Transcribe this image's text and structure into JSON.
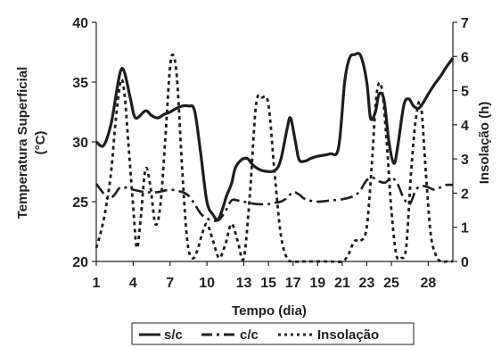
{
  "chart_data": {
    "type": "line",
    "xlabel": "Tempo (dia)",
    "ylabel_left": [
      "Temperatura Superficial",
      "(°C)"
    ],
    "ylabel_right": "Insolação (h)",
    "x_ticks": [
      "1",
      "4",
      "7",
      "10",
      "13",
      "15",
      "17",
      "19",
      "21",
      "23",
      "25",
      "28"
    ],
    "x_tick_values": [
      1,
      4,
      7,
      10,
      13,
      15,
      17,
      19,
      21,
      23,
      25,
      28
    ],
    "xlim": [
      1,
      30
    ],
    "ylim_left": [
      20,
      40
    ],
    "y_ticks_left": [
      "20",
      "25",
      "30",
      "35",
      "40"
    ],
    "ylim_right": [
      0,
      7
    ],
    "y_ticks_right": [
      "0",
      "1",
      "2",
      "3",
      "4",
      "5",
      "6",
      "7"
    ],
    "grid": false,
    "legend_position": "bottom",
    "series": [
      {
        "name": "s/c",
        "axis": "left",
        "style": "solid",
        "x": [
          1,
          1.6,
          2.2,
          2.7,
          3.0,
          3.3,
          3.8,
          4.2,
          5.0,
          5.5,
          6.0,
          6.5,
          7.0,
          7.5,
          8.0,
          8.5,
          9.0,
          9.5,
          10.0,
          10.5,
          10.9,
          11.3,
          11.6,
          12.0,
          12.3,
          12.8,
          13.3,
          13.8,
          14.5,
          15.5,
          16.0,
          16.5,
          16.8,
          17.2,
          17.5,
          18.0,
          18.4,
          19.0,
          20.0,
          20.7,
          21.2,
          21.6,
          22.0,
          22.5,
          23.0,
          23.3,
          23.7,
          24.0,
          24.4,
          24.8,
          25.2,
          25.5,
          26.0,
          26.4,
          26.8,
          27.2,
          27.6,
          28.0,
          28.5,
          29.0,
          29.5,
          30.0
        ],
        "values": [
          30.0,
          29.7,
          31.5,
          34.5,
          36.0,
          35.8,
          33.5,
          32.0,
          32.6,
          32.2,
          32.0,
          32.3,
          32.5,
          32.8,
          33.0,
          33.0,
          32.6,
          29.0,
          25.0,
          23.9,
          23.5,
          24.5,
          25.5,
          26.5,
          27.8,
          28.5,
          28.6,
          28.0,
          27.6,
          27.6,
          28.5,
          31.0,
          32.0,
          30.0,
          28.5,
          28.4,
          28.6,
          28.8,
          29.0,
          29.5,
          35.0,
          37.0,
          37.3,
          37.2,
          35.0,
          32.0,
          32.5,
          34.0,
          33.5,
          30.0,
          28.2,
          29.5,
          33.0,
          33.6,
          33.0,
          32.8,
          33.3,
          34.0,
          34.8,
          35.5,
          36.3,
          37.0
        ]
      },
      {
        "name": "c/c",
        "axis": "left",
        "style": "dashdot",
        "x": [
          1,
          1.5,
          2.0,
          2.5,
          3.0,
          4.0,
          5.0,
          6.0,
          7.0,
          8.0,
          8.5,
          9.0,
          9.5,
          10.0,
          10.5,
          11.0,
          11.5,
          12.0,
          12.5,
          13.0,
          14.0,
          15.0,
          15.5,
          16.0,
          16.5,
          17.0,
          17.5,
          18.0,
          19.0,
          20.0,
          21.0,
          22.0,
          22.5,
          23.0,
          23.5,
          24.0,
          24.5,
          25.0,
          25.5,
          26.0,
          26.5,
          27.0,
          27.5,
          28.0,
          28.5,
          29.0,
          29.5,
          30.0
        ],
        "values": [
          26.5,
          25.8,
          25.2,
          25.6,
          26.2,
          26.0,
          25.8,
          25.8,
          26.0,
          25.8,
          25.5,
          24.8,
          24.0,
          23.6,
          23.4,
          23.5,
          24.2,
          25.1,
          25.1,
          25.0,
          24.8,
          24.8,
          24.9,
          25.0,
          25.3,
          25.8,
          25.6,
          25.2,
          25.0,
          25.1,
          25.2,
          25.5,
          26.0,
          26.8,
          27.0,
          26.7,
          26.6,
          27.0,
          26.5,
          25.3,
          24.8,
          26.0,
          26.3,
          26.2,
          26.0,
          26.2,
          26.4,
          26.4
        ]
      },
      {
        "name": "Insolação",
        "axis": "right",
        "style": "dotted",
        "x": [
          1,
          1.4,
          1.8,
          2.2,
          2.6,
          3.0,
          3.3,
          3.6,
          4.0,
          4.3,
          4.6,
          5.0,
          5.4,
          5.8,
          6.2,
          6.6,
          7.0,
          7.3,
          7.6,
          8.0,
          8.4,
          8.8,
          9.2,
          9.6,
          10.0,
          10.5,
          11.0,
          11.5,
          12.0,
          12.5,
          13.0,
          13.5,
          14.0,
          14.5,
          15.0,
          15.5,
          16.0,
          16.5,
          17.0,
          18.0,
          19.0,
          20.0,
          21.0,
          21.5,
          22.0,
          22.5,
          23.0,
          23.4,
          23.8,
          24.2,
          24.6,
          25.0,
          25.4,
          25.8,
          26.2,
          26.6,
          27.0,
          27.4,
          27.8,
          28.2,
          28.6,
          29.0,
          29.5,
          30.0
        ],
        "values": [
          0.4,
          0.9,
          1.6,
          2.6,
          4.2,
          5.3,
          4.9,
          3.5,
          1.6,
          0.4,
          1.2,
          2.7,
          2.2,
          1.1,
          1.6,
          3.5,
          5.7,
          6.0,
          5.2,
          2.6,
          0.6,
          0.1,
          0.3,
          0.8,
          1.1,
          0.6,
          0.1,
          0.5,
          1.1,
          0.6,
          0.1,
          2.0,
          4.6,
          4.8,
          4.6,
          2.6,
          0.8,
          0.1,
          0.0,
          0.0,
          0.0,
          0.0,
          0.0,
          0.2,
          0.6,
          0.6,
          1.0,
          2.8,
          4.9,
          5.1,
          3.6,
          1.5,
          0.2,
          0.1,
          0.4,
          2.6,
          4.2,
          4.6,
          2.6,
          0.8,
          0.2,
          0.0,
          0.0,
          0.0
        ]
      }
    ]
  }
}
